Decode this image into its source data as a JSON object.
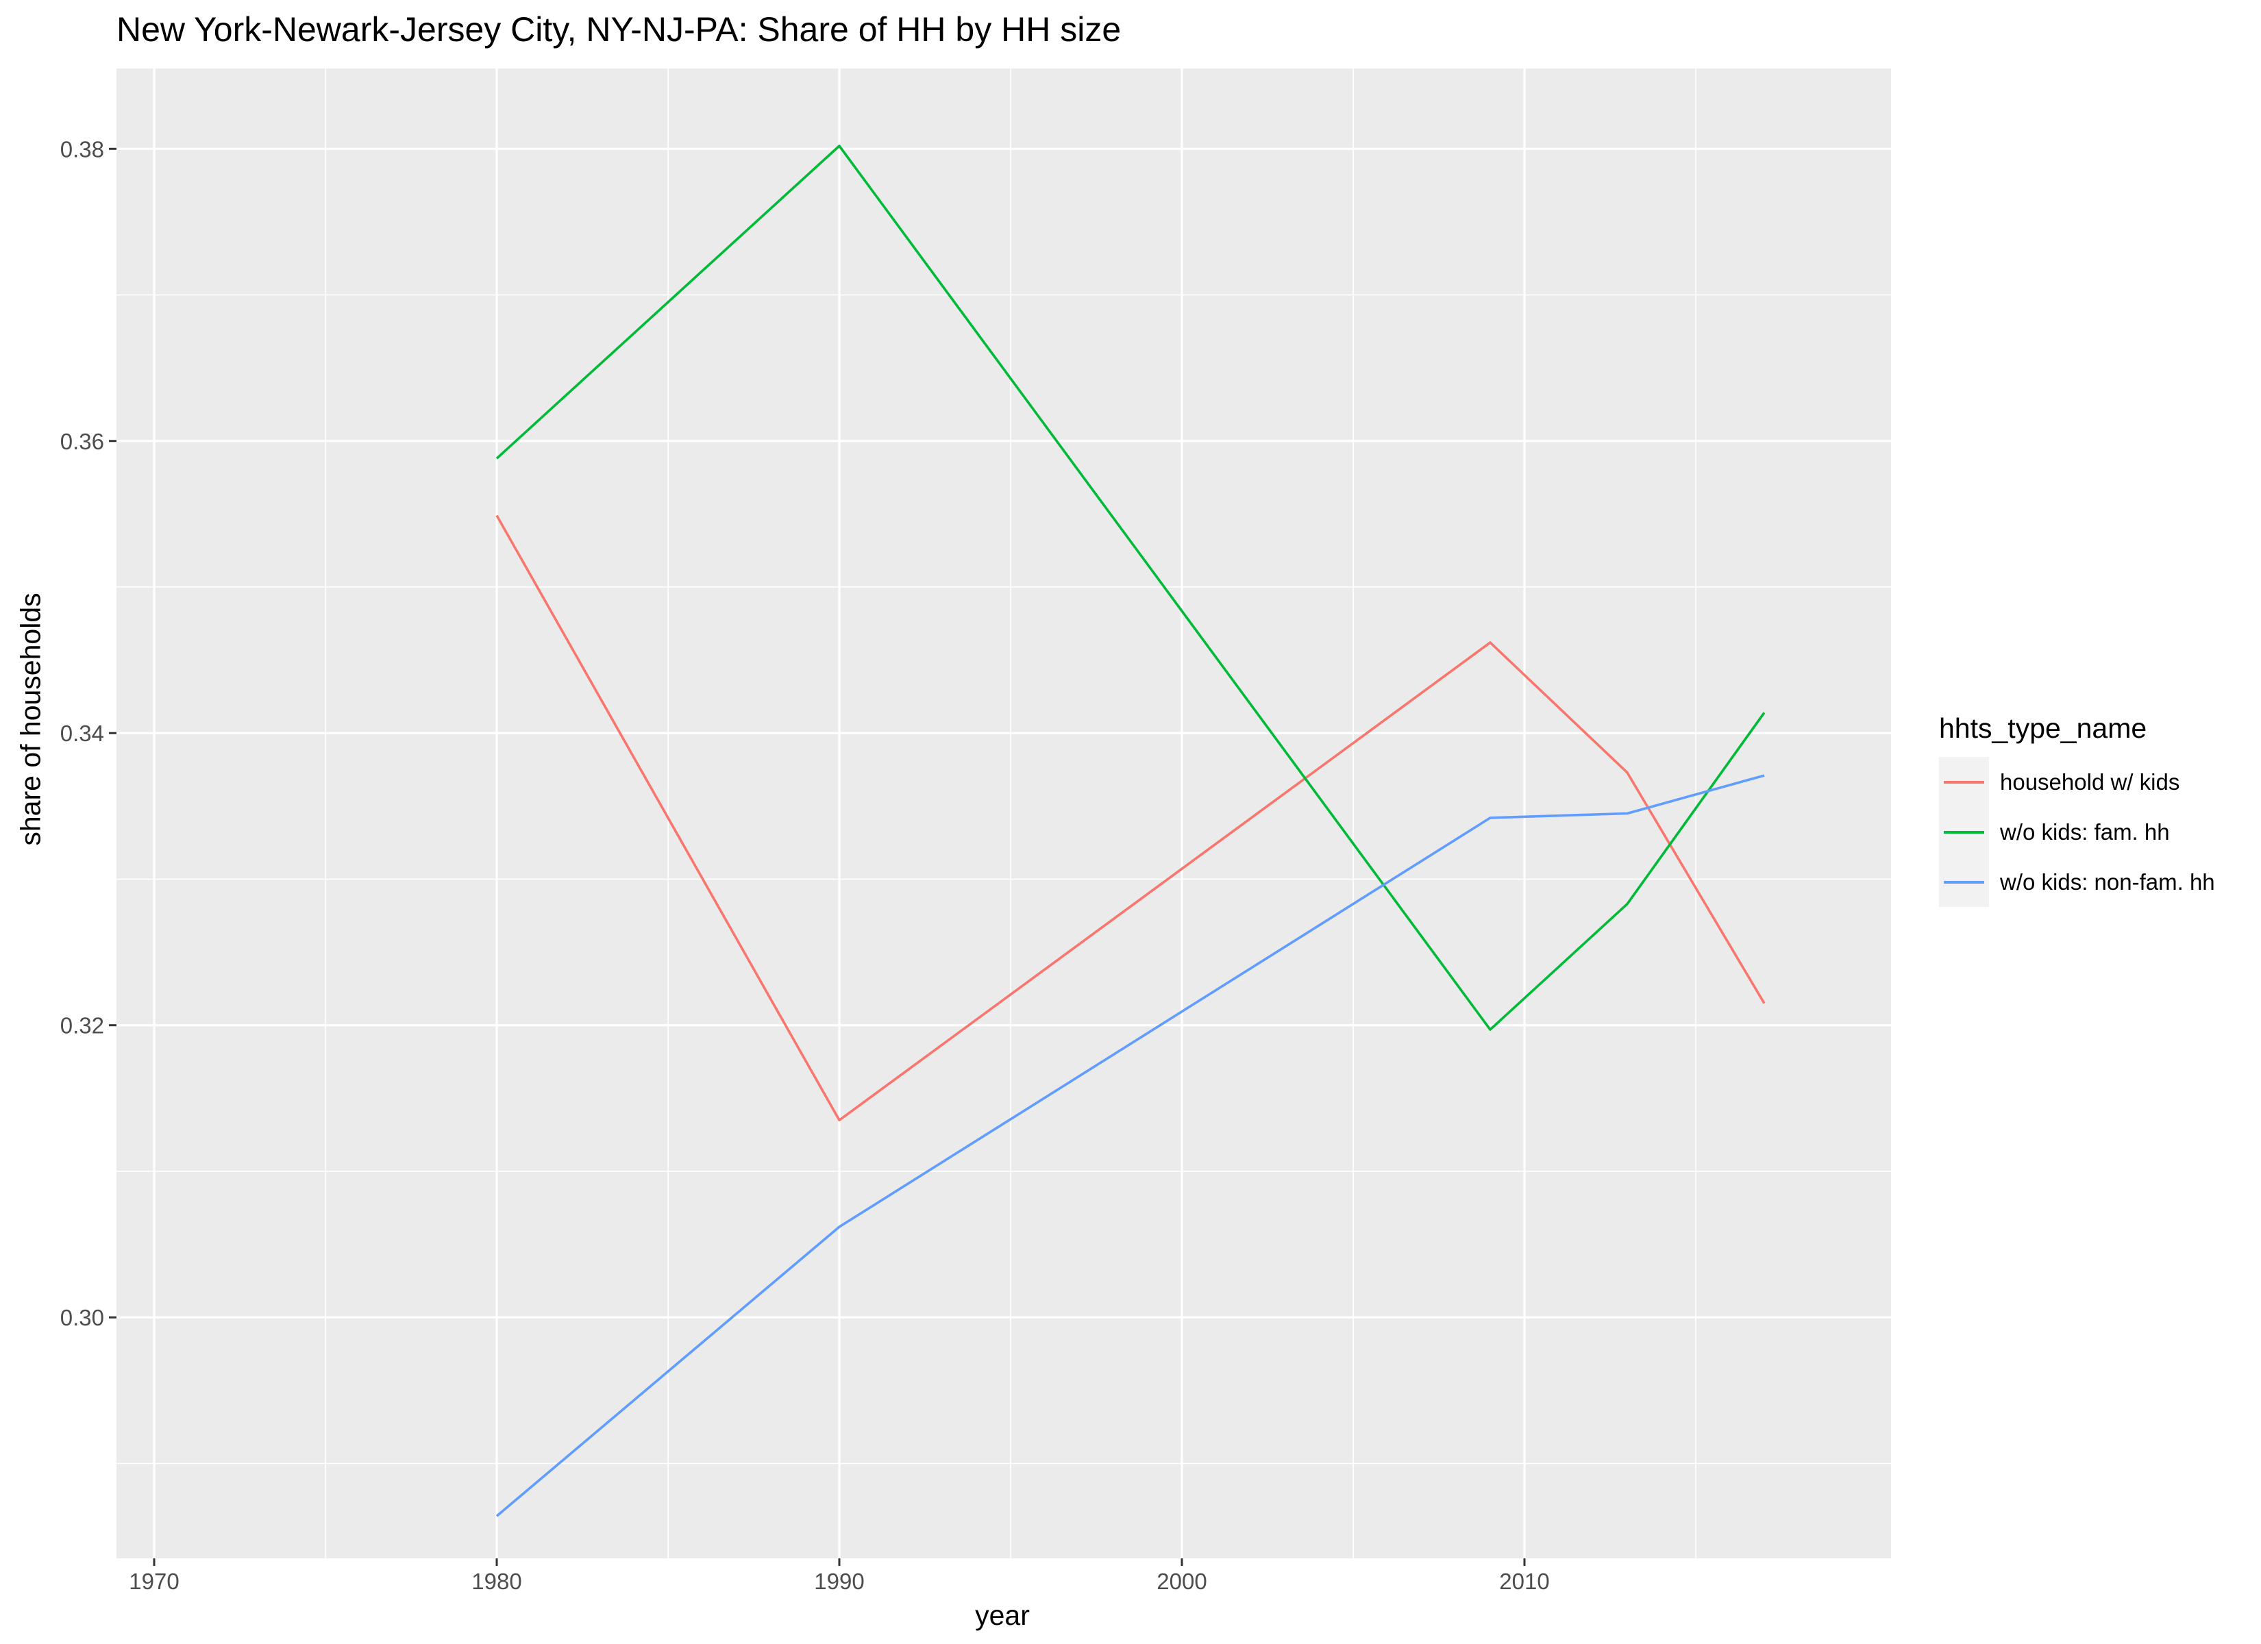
{
  "chart_data": {
    "type": "line",
    "title": "New York-Newark-Jersey City, NY-NJ-PA: Share of HH by HH size",
    "xlabel": "year",
    "ylabel": "share of households",
    "xlim": [
      1968.9,
      2020.7
    ],
    "ylim": [
      0.2835,
      0.3855
    ],
    "x_ticks": [
      1970,
      1980,
      1990,
      2000,
      2010
    ],
    "x_tick_labels": [
      "1970",
      "1980",
      "1990",
      "2000",
      "2010"
    ],
    "y_ticks": [
      0.3,
      0.32,
      0.34,
      0.36,
      0.38
    ],
    "y_tick_labels": [
      "0.30",
      "0.32",
      "0.34",
      "0.36",
      "0.38"
    ],
    "grid": true,
    "legend": {
      "title": "hhts_type_name",
      "placement": "right"
    },
    "series": [
      {
        "name": "household w/ kids",
        "color": "#F8766D",
        "x": [
          1980,
          1990,
          2009,
          2013,
          2017
        ],
        "values": [
          0.3549,
          0.3135,
          0.3462,
          0.3373,
          0.3215
        ]
      },
      {
        "name": "w/o kids: fam. hh",
        "color": "#00BA38",
        "x": [
          1980,
          1990,
          2009,
          2013,
          2017
        ],
        "values": [
          0.3588,
          0.3802,
          0.3197,
          0.3283,
          0.3414
        ]
      },
      {
        "name": "w/o kids: non-fam. hh",
        "color": "#619CFF",
        "x": [
          1980,
          1990,
          2009,
          2013,
          2017
        ],
        "values": [
          0.2864,
          0.3062,
          0.3342,
          0.3345,
          0.3371
        ]
      }
    ]
  }
}
